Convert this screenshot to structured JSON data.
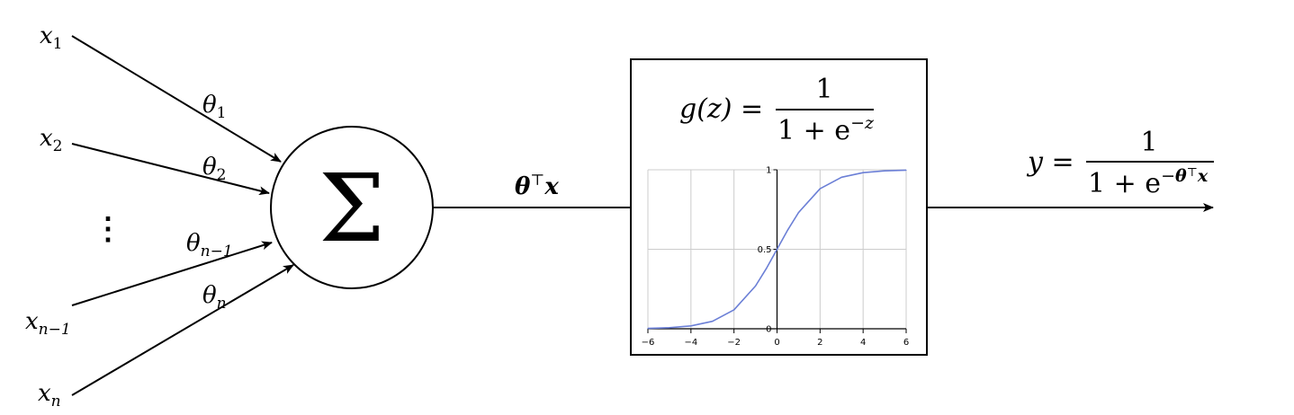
{
  "inputs": [
    {
      "var": "x",
      "sub": "1",
      "weight_sub": "1"
    },
    {
      "var": "x",
      "sub": "2",
      "weight_sub": "2"
    },
    {
      "var": "x",
      "sub": "n−1",
      "weight_sub": "n−1"
    },
    {
      "var": "x",
      "sub": "n",
      "weight_sub": "n"
    }
  ],
  "weight_symbol": "θ",
  "ellipsis": "⋮",
  "sum_symbol": "Σ",
  "linear_output": {
    "bold_theta": "θ",
    "transpose": "⊤",
    "bold_x": "x"
  },
  "activation": {
    "lhs": "g(z) =",
    "numerator": "1",
    "denominator_prefix": "1 + e",
    "denominator_exponent": "−z"
  },
  "output": {
    "lhs": "y =",
    "numerator": "1",
    "denominator_prefix": "1 + e",
    "exponent_minus": "−",
    "exponent_theta": "θ",
    "exponent_transpose": "⊤",
    "exponent_x": "x"
  },
  "colors": {
    "curve": "#6b7fd6",
    "grid": "#cccccc",
    "line": "#000000"
  },
  "chart_data": {
    "type": "line",
    "function": "sigmoid",
    "x_ticks": [
      "−6",
      "−4",
      "−2",
      "0",
      "2",
      "4",
      "6"
    ],
    "y_ticks": [
      "0",
      "0.5",
      "1"
    ],
    "xlim": [
      -6,
      6
    ],
    "ylim": [
      0,
      1
    ],
    "grid": true,
    "series": [
      {
        "x": [
          -6,
          -5,
          -4,
          -3,
          -2,
          -1,
          -0.5,
          0,
          0.5,
          1,
          2,
          3,
          4,
          5,
          6
        ],
        "values": [
          0.0025,
          0.0067,
          0.018,
          0.047,
          0.119,
          0.269,
          0.378,
          0.5,
          0.622,
          0.731,
          0.881,
          0.953,
          0.982,
          0.9933,
          0.9975
        ]
      }
    ]
  }
}
